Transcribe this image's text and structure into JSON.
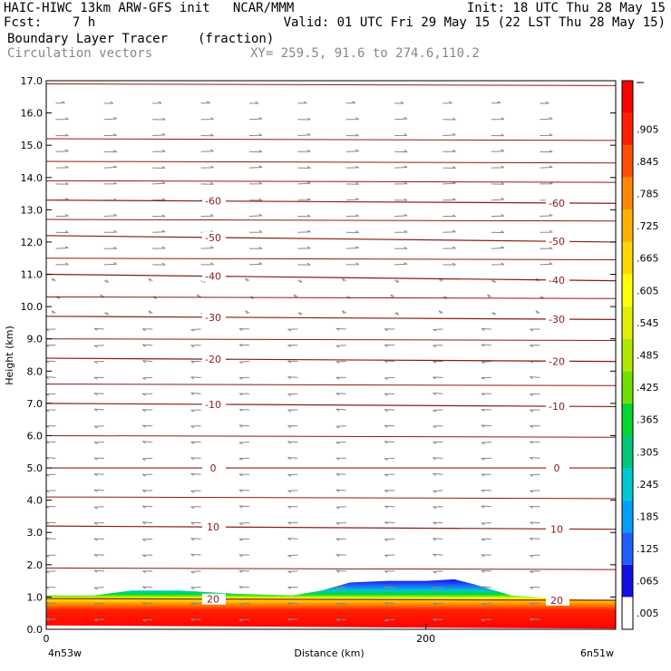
{
  "header": {
    "line1_left": "HAIC-HIWC 13km ARW-GFS init   NCAR/MMM",
    "line1_right": "Init: 18 UTC Thu 28 May 15",
    "line2_left": "Fcst:    7 h",
    "line2_right": "Valid: 01 UTC Fri 29 May 15 (22 LST Thu 28 May 15)",
    "field_name": "Boundary Layer Tracer",
    "field_units": "(fraction)",
    "vector_label": "Circulation vectors",
    "xy_label": "XY= 259.5, 91.6 to 274.6,110.2"
  },
  "axes": {
    "ylabel": "Height (km)",
    "xlabel": "Distance (km)",
    "left_endpoint": "4n53w",
    "right_endpoint": "6n51w"
  },
  "colors": {
    "contour": "#8b1a1a",
    "vector": "#888888"
  },
  "chart_data": {
    "type": "heatmap",
    "ylim": [
      0,
      17
    ],
    "xlim": [
      0,
      300
    ],
    "yticks": [
      "0.0",
      "1.0",
      "2.0",
      "3.0",
      "4.0",
      "5.0",
      "6.0",
      "7.0",
      "8.0",
      "9.0",
      "10.0",
      "11.0",
      "12.0",
      "13.0",
      "14.0",
      "15.0",
      "16.0",
      "17.0"
    ],
    "xticks": [
      "0",
      "200"
    ],
    "colorbar": {
      "labels": [
        ".005",
        ".065",
        ".125",
        ".185",
        ".245",
        ".305",
        ".365",
        ".425",
        ".485",
        ".545",
        ".605",
        ".665",
        ".725",
        ".785",
        ".845",
        ".905"
      ],
      "colors": [
        "#ffffff",
        "#1010e0",
        "#2060ff",
        "#00a0ff",
        "#00c8d0",
        "#00c878",
        "#00d830",
        "#70e000",
        "#b0e800",
        "#e0f000",
        "#ffff00",
        "#ffd800",
        "#ffb000",
        "#ff8800",
        "#ff5000",
        "#ff2000",
        "#ff0000"
      ]
    },
    "temperature_contours": [
      {
        "value": "-60",
        "y_left": 13.3,
        "y_right": 13.2
      },
      {
        "value": "-50",
        "y_left": 12.2,
        "y_right": 12.0
      },
      {
        "value": "-40",
        "y_left": 11.0,
        "y_right": 10.8
      },
      {
        "value": "-30",
        "y_left": 9.7,
        "y_right": 9.6
      },
      {
        "value": "-20",
        "y_left": 8.4,
        "y_right": 8.3
      },
      {
        "value": "-10",
        "y_left": 7.0,
        "y_right": 6.9
      },
      {
        "value": "0",
        "y_left": 5.0,
        "y_right": 5.0
      },
      {
        "value": "10",
        "y_left": 3.2,
        "y_right": 3.1
      },
      {
        "value": "20",
        "y_left": 0.95,
        "y_right": 0.9
      }
    ],
    "tracer_top_profile": {
      "x": [
        0,
        25,
        45,
        70,
        100,
        130,
        145,
        160,
        180,
        200,
        215,
        225,
        245,
        270,
        300
      ],
      "y": [
        1.05,
        1.05,
        1.2,
        1.2,
        1.1,
        1.05,
        1.2,
        1.45,
        1.5,
        1.5,
        1.55,
        1.4,
        1.05,
        0.95,
        0.9
      ]
    }
  }
}
